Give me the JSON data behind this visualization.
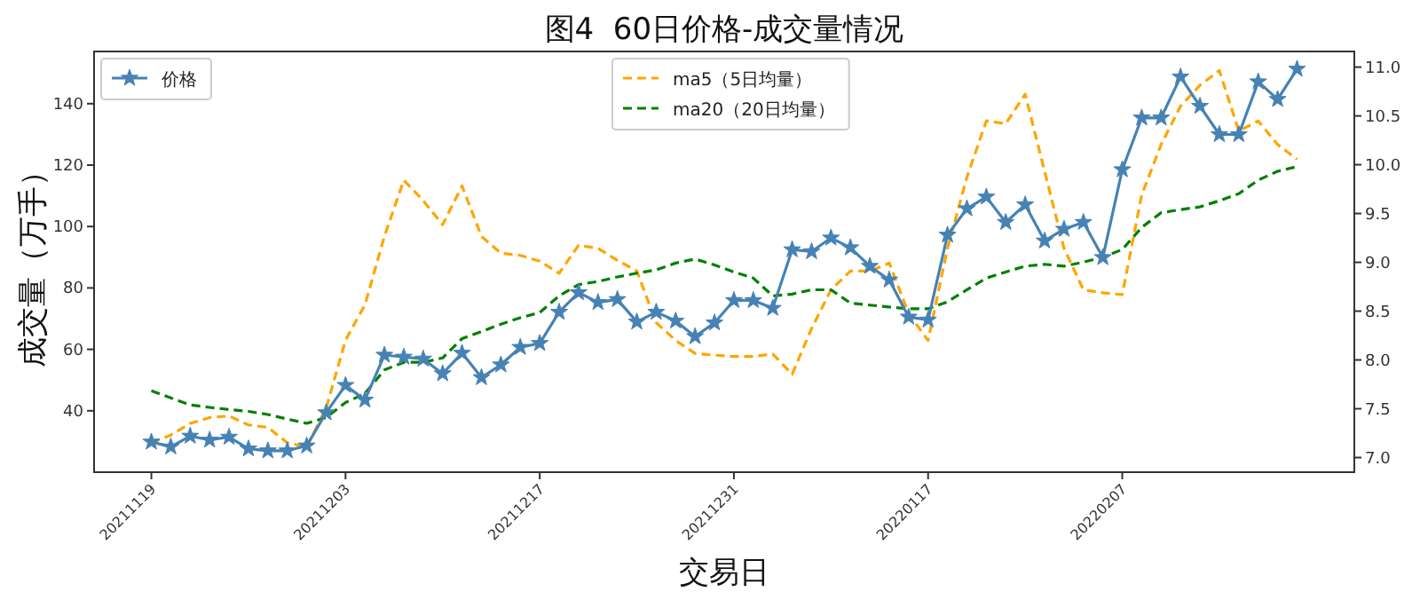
{
  "chart_data": {
    "type": "line",
    "title": "图4  60日价格-成交量情况",
    "xlabel": "交易日",
    "ylabel": "成交量（万手）",
    "categories": [
      "20211119",
      null,
      null,
      null,
      null,
      null,
      null,
      null,
      null,
      null,
      "20211203",
      null,
      null,
      null,
      null,
      null,
      null,
      null,
      null,
      null,
      "20211217",
      null,
      null,
      null,
      null,
      null,
      null,
      null,
      null,
      null,
      "20211231",
      null,
      null,
      null,
      null,
      null,
      null,
      null,
      null,
      null,
      "20220117",
      null,
      null,
      null,
      null,
      null,
      null,
      null,
      null,
      null,
      "20220207",
      null,
      null,
      null,
      null,
      null,
      null,
      null,
      null,
      null
    ],
    "ylim": [
      20,
      157
    ],
    "yticks": [
      40,
      60,
      80,
      100,
      120,
      140
    ],
    "y2lim": [
      6.85,
      11.16
    ],
    "y2ticks": [
      {
        "value": 7.0,
        "label": "7.0"
      },
      {
        "value": 7.5,
        "label": "7.5"
      },
      {
        "value": 8.0,
        "label": "8.0"
      },
      {
        "value": 8.5,
        "label": "8.5"
      },
      {
        "value": 9.0,
        "label": "9.0"
      },
      {
        "value": 9.5,
        "label": "9.5"
      },
      {
        "value": 10.0,
        "label": "10.0"
      },
      {
        "value": 10.5,
        "label": "10.5"
      },
      {
        "value": 11.0,
        "label": "11.0"
      }
    ],
    "grid": false,
    "legend": "top left",
    "series": [
      {
        "name": "ma5（5日均量）",
        "color": "#ffa500",
        "line_style": "dashed",
        "marker": "none",
        "values": [
          29.6,
          32.1,
          35.9,
          37.8,
          38.3,
          35.4,
          34.6,
          29.6,
          28.2,
          40.8,
          63.0,
          74.5,
          96.8,
          115.1,
          108.4,
          100.6,
          113.2,
          96.8,
          91.3,
          90.6,
          88.7,
          84.8,
          93.9,
          92.9,
          89.0,
          85.5,
          68.7,
          62.9,
          58.7,
          58.1,
          57.7,
          57.7,
          58.5,
          51.9,
          66.8,
          79.4,
          85.5,
          85.5,
          88.1,
          71.6,
          62.9,
          92.9,
          116.1,
          134.4,
          133.5,
          143.1,
          118.0,
          92.9,
          79.4,
          78.4,
          77.8,
          110.3,
          126.7,
          139.2,
          146.0,
          150.8,
          131.1,
          134.4,
          126.7,
          121.9
        ]
      },
      {
        "name": "ma20（20日均量）",
        "color": "#008000",
        "line_style": "dashed",
        "marker": "none",
        "values": [
          46.5,
          44.2,
          41.9,
          41.1,
          40.4,
          39.8,
          38.8,
          37.3,
          35.9,
          37.8,
          42.7,
          45.6,
          53.3,
          55.8,
          55.8,
          57.2,
          63.5,
          65.8,
          68.2,
          70.3,
          72.0,
          77.4,
          81.1,
          82.1,
          83.6,
          84.8,
          85.9,
          88.1,
          89.4,
          87.5,
          85.2,
          83.2,
          77.4,
          78.0,
          79.4,
          79.4,
          75.1,
          74.4,
          73.8,
          73.2,
          73.2,
          75.5,
          79.4,
          83.2,
          85.2,
          87.1,
          87.7,
          87.1,
          88.4,
          90.0,
          92.5,
          99.7,
          104.5,
          105.5,
          106.4,
          108.4,
          110.7,
          115.1,
          118.0,
          119.5
        ]
      },
      {
        "name": "价格",
        "color": "#4682b4",
        "axis": "y2",
        "line_style": "solid",
        "marker": "star",
        "values": [
          7.16,
          7.11,
          7.22,
          7.18,
          7.21,
          7.09,
          7.07,
          7.07,
          7.12,
          7.46,
          7.74,
          7.59,
          8.05,
          8.03,
          8.01,
          7.86,
          8.07,
          7.82,
          7.95,
          8.13,
          8.17,
          8.49,
          8.69,
          8.59,
          8.62,
          8.39,
          8.49,
          8.4,
          8.24,
          8.38,
          8.61,
          8.61,
          8.53,
          9.13,
          9.11,
          9.25,
          9.15,
          8.96,
          8.82,
          8.44,
          8.41,
          9.28,
          9.55,
          9.67,
          9.41,
          9.59,
          9.22,
          9.34,
          9.41,
          9.05,
          9.95,
          10.48,
          10.48,
          10.9,
          10.6,
          10.31,
          10.31,
          10.85,
          10.67,
          10.98
        ]
      }
    ]
  }
}
